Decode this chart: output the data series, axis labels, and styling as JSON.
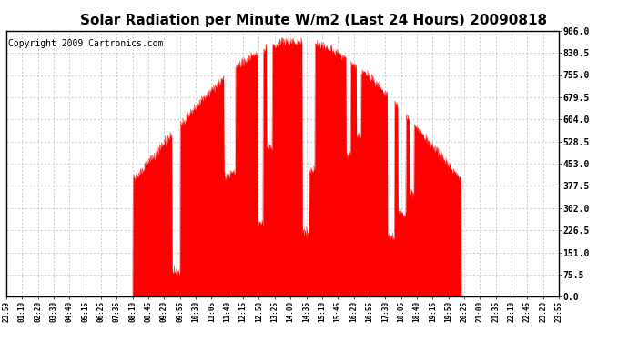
{
  "title": "Solar Radiation per Minute W/m2 (Last 24 Hours) 20090818",
  "copyright": "Copyright 2009 Cartronics.com",
  "yticks": [
    0.0,
    75.5,
    151.0,
    226.5,
    302.0,
    377.5,
    453.0,
    528.5,
    604.0,
    679.5,
    755.0,
    830.5,
    906.0
  ],
  "ylim": [
    0.0,
    906.0
  ],
  "fill_color": "red",
  "line_color": "red",
  "bg_color": "white",
  "grid_color": "#bbbbbb",
  "border_color": "black",
  "dashed_line_color": "red",
  "x_labels": [
    "23:59",
    "01:10",
    "02:20",
    "03:30",
    "04:40",
    "05:15",
    "06:25",
    "07:35",
    "08:10",
    "08:45",
    "09:20",
    "09:55",
    "10:30",
    "11:05",
    "11:40",
    "12:15",
    "12:50",
    "13:25",
    "14:00",
    "14:35",
    "15:10",
    "15:45",
    "16:20",
    "16:55",
    "17:30",
    "18:05",
    "18:40",
    "19:15",
    "19:50",
    "20:25",
    "21:00",
    "21:35",
    "22:10",
    "22:45",
    "23:20",
    "23:55"
  ],
  "title_fontsize": 11,
  "copyright_fontsize": 7,
  "ytick_fontsize": 7,
  "xtick_fontsize": 5.5
}
